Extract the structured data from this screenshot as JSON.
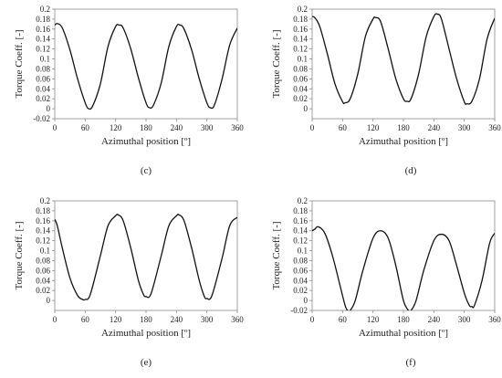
{
  "chart_data": [
    {
      "type": "line",
      "panel_label": "(c)",
      "xlabel": "Azimuthal position [º]",
      "ylabel": "Torque Coeff. [-]",
      "xlim": [
        0,
        360
      ],
      "ylim": [
        -0.02,
        0.2
      ],
      "xticks": [
        0,
        60,
        120,
        180,
        240,
        300,
        360
      ],
      "yticks": [
        -0.02,
        0,
        0.02,
        0.04,
        0.06,
        0.08,
        0.1,
        0.12,
        0.14,
        0.16,
        0.18,
        0.2
      ],
      "ytick_labels": [
        "-0.02",
        "0",
        "0.02",
        "0.04",
        "0.06",
        "0.08",
        "0.1",
        "0.12",
        "0.14",
        "0.16",
        "0.18",
        "0.2"
      ],
      "series": [
        {
          "x": [
            0,
            5,
            15,
            30,
            45,
            60,
            67,
            75,
            90,
            105,
            120,
            127,
            135,
            150,
            165,
            180,
            187,
            195,
            210,
            225,
            240,
            247,
            255,
            270,
            285,
            300,
            307,
            315,
            330,
            345,
            360
          ],
          "values": [
            0.168,
            0.171,
            0.162,
            0.118,
            0.06,
            0.012,
            0.0,
            0.006,
            0.05,
            0.125,
            0.165,
            0.168,
            0.162,
            0.12,
            0.062,
            0.012,
            0.002,
            0.008,
            0.052,
            0.125,
            0.165,
            0.168,
            0.16,
            0.118,
            0.06,
            0.012,
            0.002,
            0.008,
            0.06,
            0.128,
            0.162
          ]
        }
      ]
    },
    {
      "type": "line",
      "panel_label": "(d)",
      "xlabel": "Azimuthal position [º]",
      "ylabel": "Torque Coeff. [-]",
      "xlim": [
        0,
        360
      ],
      "ylim": [
        -0.02,
        0.2
      ],
      "xticks": [
        0,
        60,
        120,
        180,
        240,
        300,
        360
      ],
      "yticks": [
        0,
        0.02,
        0.04,
        0.06,
        0.08,
        0.1,
        0.12,
        0.14,
        0.16,
        0.18,
        0.2
      ],
      "ytick_labels": [
        "0",
        "0.02",
        "0.04",
        "0.06",
        "0.08",
        "0.1",
        "0.12",
        "0.14",
        "0.16",
        "0.18",
        "0.2"
      ],
      "series": [
        {
          "x": [
            0,
            5,
            15,
            30,
            45,
            60,
            65,
            75,
            90,
            105,
            120,
            125,
            135,
            150,
            165,
            180,
            187,
            195,
            210,
            225,
            240,
            247,
            255,
            270,
            285,
            300,
            305,
            315,
            330,
            345,
            360
          ],
          "values": [
            0.185,
            0.183,
            0.165,
            0.11,
            0.05,
            0.014,
            0.012,
            0.02,
            0.07,
            0.145,
            0.18,
            0.183,
            0.175,
            0.12,
            0.06,
            0.02,
            0.015,
            0.02,
            0.07,
            0.145,
            0.185,
            0.19,
            0.18,
            0.12,
            0.06,
            0.014,
            0.01,
            0.015,
            0.06,
            0.14,
            0.182
          ]
        }
      ]
    },
    {
      "type": "line",
      "panel_label": "(e)",
      "xlabel": "Azimuthal position [º]",
      "ylabel": "Torque Coeff. [-]",
      "xlim": [
        0,
        360
      ],
      "ylim": [
        -0.02,
        0.2
      ],
      "xticks": [
        0,
        60,
        120,
        180,
        240,
        300,
        360
      ],
      "yticks": [
        0,
        0.02,
        0.04,
        0.06,
        0.08,
        0.1,
        0.12,
        0.14,
        0.16,
        0.18,
        0.2
      ],
      "ytick_labels": [
        "0",
        "0.02",
        "0.04",
        "0.06",
        "0.08",
        "0.1",
        "0.12",
        "0.14",
        "0.16",
        "0.18",
        "0.2"
      ],
      "series": [
        {
          "x": [
            0,
            5,
            15,
            30,
            45,
            55,
            60,
            70,
            90,
            105,
            120,
            125,
            135,
            150,
            165,
            175,
            180,
            190,
            210,
            225,
            240,
            245,
            255,
            270,
            285,
            295,
            300,
            310,
            330,
            345,
            360
          ],
          "values": [
            0.163,
            0.15,
            0.105,
            0.045,
            0.01,
            0.002,
            0.002,
            0.012,
            0.09,
            0.15,
            0.17,
            0.172,
            0.16,
            0.105,
            0.04,
            0.012,
            0.008,
            0.014,
            0.09,
            0.15,
            0.17,
            0.172,
            0.16,
            0.105,
            0.04,
            0.008,
            0.004,
            0.01,
            0.085,
            0.15,
            0.167
          ]
        }
      ]
    },
    {
      "type": "line",
      "panel_label": "(f)",
      "xlabel": "Azimuthal position [º]",
      "ylabel": "Torque Coeff. [-]",
      "xlim": [
        0,
        360
      ],
      "ylim": [
        -0.02,
        0.2
      ],
      "xticks": [
        0,
        60,
        120,
        180,
        240,
        300,
        360
      ],
      "yticks": [
        -0.02,
        0,
        0.02,
        0.04,
        0.06,
        0.08,
        0.1,
        0.12,
        0.14,
        0.16,
        0.18,
        0.2
      ],
      "ytick_labels": [
        "-0.02",
        "0",
        "0.02",
        "0.04",
        "0.06",
        "0.08",
        "0.1",
        "0.12",
        "0.14",
        "0.16",
        "0.18",
        "0.2"
      ],
      "series": [
        {
          "x": [
            0,
            5,
            12,
            25,
            40,
            55,
            65,
            70,
            75,
            85,
            100,
            120,
            135,
            150,
            165,
            180,
            190,
            195,
            205,
            220,
            240,
            255,
            270,
            285,
            300,
            310,
            315,
            320,
            335,
            350,
            360
          ],
          "values": [
            0.14,
            0.143,
            0.148,
            0.135,
            0.09,
            0.03,
            -0.01,
            -0.02,
            -0.02,
            0.0,
            0.06,
            0.125,
            0.14,
            0.125,
            0.07,
            0.0,
            -0.02,
            -0.02,
            0.0,
            0.06,
            0.12,
            0.133,
            0.12,
            0.07,
            0.015,
            -0.01,
            -0.012,
            -0.01,
            0.04,
            0.115,
            0.135
          ]
        }
      ]
    }
  ]
}
